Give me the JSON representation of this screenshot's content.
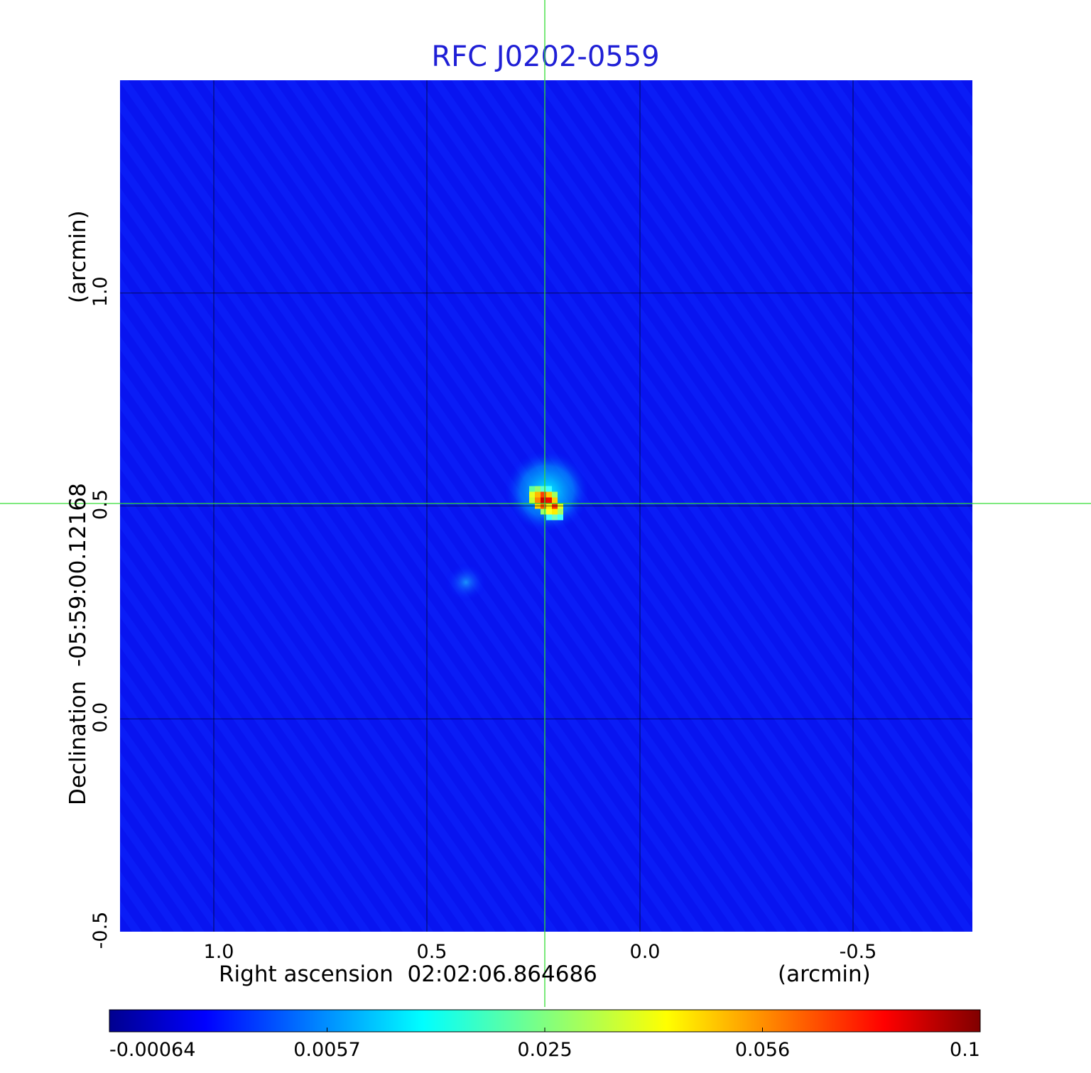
{
  "chart_data": {
    "type": "heatmap",
    "title": "RFC J0202-0559",
    "xlabel": "Right ascension  02:02:06.864686",
    "xunit": "(arcmin)",
    "ylabel": "Declination  -05:59:00.12168",
    "yunit": "(arcmin)",
    "x_ticks": [
      "1.0",
      "0.5",
      "0.0",
      "-0.5"
    ],
    "y_ticks": [
      "1.0",
      "0.5",
      "0.0",
      "-0.5"
    ],
    "xlim": [
      1.22,
      -0.78
    ],
    "ylim": [
      -0.5,
      1.5
    ],
    "grid": true,
    "colormap": "jet",
    "colorbar_ticks": [
      "-0.00064",
      "0.0057",
      "0.025",
      "0.056",
      "0.1"
    ],
    "colorbar_range": [
      -0.00064,
      0.1
    ],
    "crosshair": {
      "x": 0.22,
      "y": 0.5,
      "color": "#33dd33"
    },
    "sources": [
      {
        "x": 0.22,
        "y": 0.5,
        "peak": 0.1
      },
      {
        "x": 0.4,
        "y": 0.31,
        "peak": 0.0057
      }
    ],
    "background_level": -0.00064
  }
}
